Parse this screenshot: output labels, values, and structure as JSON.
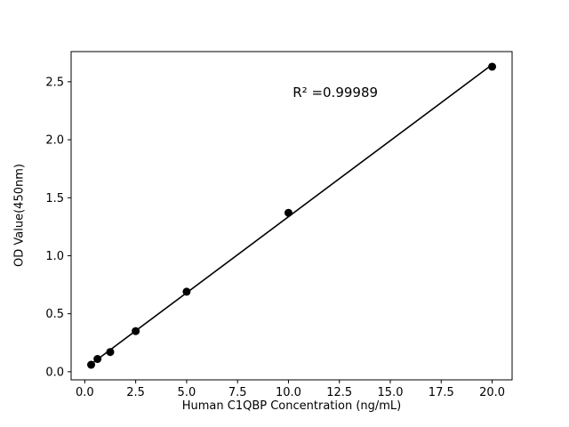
{
  "figure": {
    "background": "#ffffff"
  },
  "chart_data": {
    "type": "scatter",
    "title": "",
    "xlabel": "Human C1QBP Concentration (ng/mL)",
    "ylabel": "OD Value(450nm)",
    "x": [
      0.3125,
      0.625,
      1.25,
      2.5,
      5,
      10,
      20
    ],
    "y": [
      0.06,
      0.11,
      0.17,
      0.35,
      0.69,
      1.37,
      2.63
    ],
    "x_tick_labels": [
      "0.0",
      "2.5",
      "5.0",
      "7.5",
      "10.0",
      "12.5",
      "15.0",
      "17.5",
      "20.0"
    ],
    "x_tick_values": [
      0,
      2.5,
      5,
      7.5,
      10,
      12.5,
      15,
      17.5,
      20
    ],
    "y_tick_labels": [
      "0.0",
      "0.5",
      "1.0",
      "1.5",
      "2.0",
      "2.5"
    ],
    "y_tick_values": [
      0,
      0.5,
      1,
      1.5,
      2,
      2.5
    ],
    "xlim": [
      -0.67,
      20.98
    ],
    "ylim": [
      -0.07,
      2.76
    ],
    "grid": false,
    "legend": null,
    "fit_line": true,
    "marker_color": "#000000",
    "line_color": "#000000",
    "axis_color": "#000000",
    "annotation": {
      "text": "R² =0.99989",
      "x": 12.3,
      "y": 2.41
    }
  }
}
